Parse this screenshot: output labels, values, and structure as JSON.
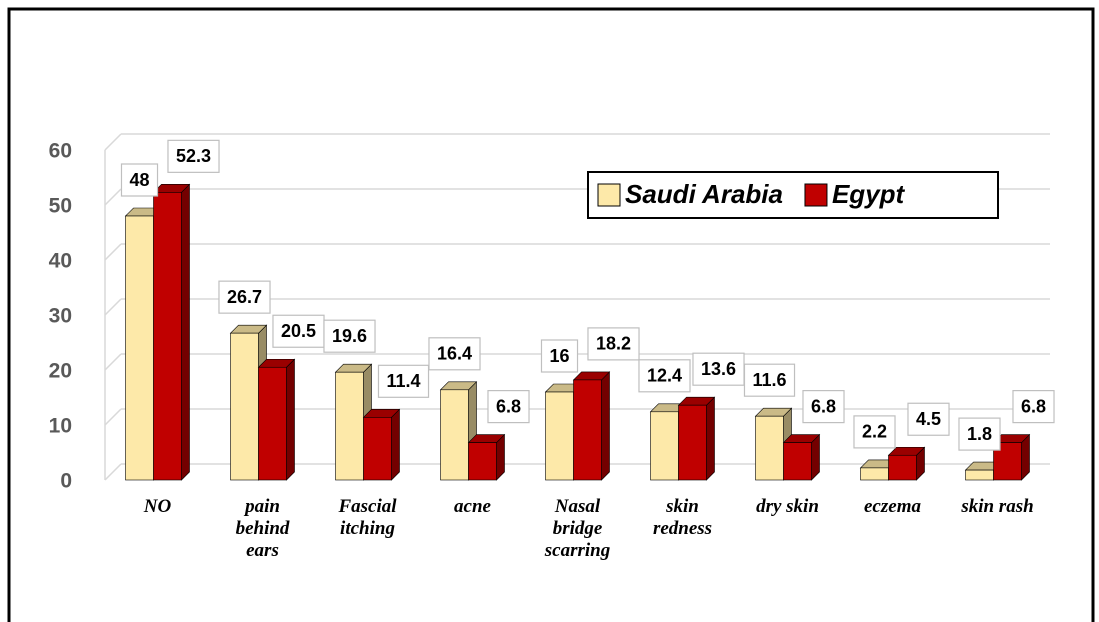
{
  "chart_data": {
    "type": "bar3d",
    "categories": [
      "NO",
      "pain behind ears",
      "Fascial itching",
      "acne",
      "Nasal bridge scarring",
      "skin redness",
      "dry skin",
      "eczema",
      "skin rash"
    ],
    "series": [
      {
        "name": "Saudi Arabia",
        "color": "#fde9a9",
        "values": [
          48,
          26.7,
          19.6,
          16.4,
          16,
          12.4,
          11.6,
          2.2,
          1.8
        ]
      },
      {
        "name": "Egypt",
        "color": "#c00000",
        "values": [
          52.3,
          20.5,
          11.4,
          6.8,
          18.2,
          13.6,
          6.8,
          4.5,
          6.8
        ]
      }
    ],
    "ylim": [
      0,
      60
    ],
    "yticks": [
      0,
      10,
      20,
      30,
      40,
      50,
      60
    ],
    "grid": true,
    "legend": "upper right"
  }
}
